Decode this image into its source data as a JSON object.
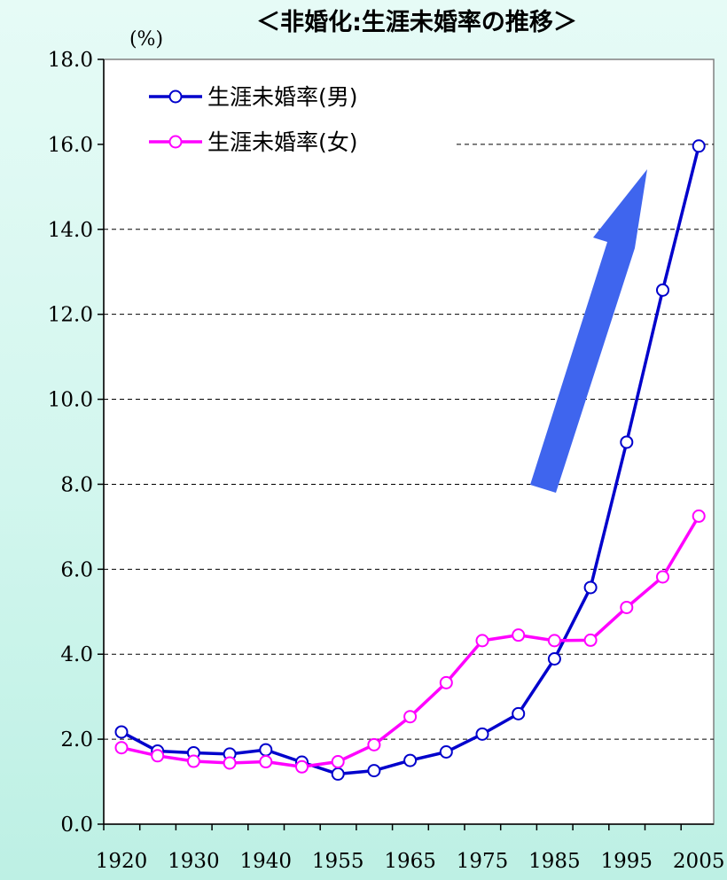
{
  "chart_data": {
    "type": "line",
    "title": "＜非婚化:生涯未婚率の推移＞",
    "ylabel": "(%)",
    "xlabel": "",
    "ylim": [
      0,
      18
    ],
    "yticks": [
      "0.0",
      "2.0",
      "4.0",
      "6.0",
      "8.0",
      "10.0",
      "12.0",
      "14.0",
      "16.0",
      "18.0"
    ],
    "xtick_labels": [
      "1920",
      "1930",
      "1940",
      "1955",
      "1965",
      "1975",
      "1985",
      "1995",
      "2005"
    ],
    "grid": "horizontal dashed",
    "legend_position": "top-left",
    "x": [
      1920,
      1925,
      1930,
      1935,
      1940,
      1950,
      1955,
      1960,
      1965,
      1970,
      1975,
      1980,
      1985,
      1990,
      1995,
      2000,
      2005
    ],
    "series": [
      {
        "name": "生涯未婚率(男)",
        "color": "#0000cc",
        "values": [
          2.17,
          1.72,
          1.68,
          1.65,
          1.75,
          1.46,
          1.18,
          1.26,
          1.5,
          1.7,
          2.12,
          2.6,
          3.89,
          5.57,
          8.99,
          12.57,
          15.96
        ]
      },
      {
        "name": "生涯未婚率(女)",
        "color": "#ff00ff",
        "values": [
          1.8,
          1.61,
          1.48,
          1.44,
          1.47,
          1.35,
          1.47,
          1.87,
          2.53,
          3.33,
          4.32,
          4.45,
          4.32,
          4.33,
          5.1,
          5.82,
          7.25
        ]
      }
    ],
    "annotation": "upward-trend-arrow"
  }
}
